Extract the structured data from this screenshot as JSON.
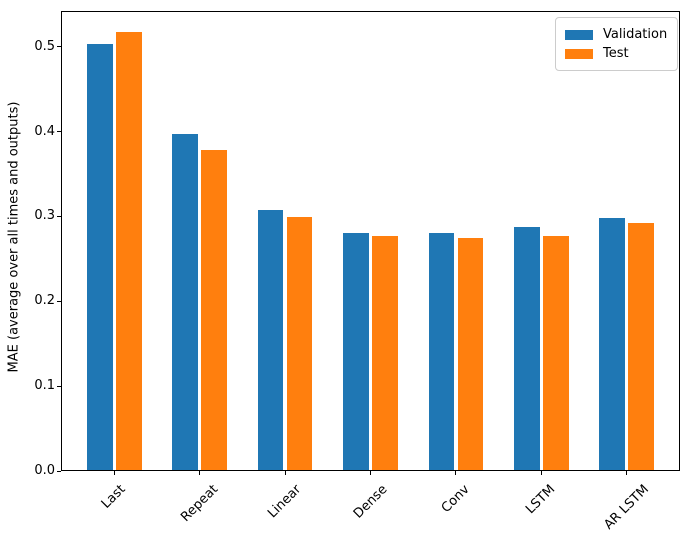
{
  "chart_data": {
    "type": "bar",
    "title": "",
    "xlabel": "",
    "ylabel": "MAE (average over all times and outputs)",
    "categories": [
      "Last",
      "Repeat",
      "Linear",
      "Dense",
      "Conv",
      "LSTM",
      "AR LSTM"
    ],
    "series": [
      {
        "name": "Validation",
        "color": "#1f77b4",
        "values": [
          0.503,
          0.397,
          0.307,
          0.281,
          0.28,
          0.287,
          0.298
        ]
      },
      {
        "name": "Test",
        "color": "#ff7f0e",
        "values": [
          0.517,
          0.378,
          0.299,
          0.277,
          0.275,
          0.277,
          0.292
        ]
      }
    ],
    "bar_width": 0.3,
    "bar_offsets": [
      -0.17,
      0.17
    ],
    "xlim": [
      -0.624,
      6.624
    ],
    "ylim": [
      0,
      0.542
    ],
    "yticks": [
      {
        "value": 0.0,
        "label": "0.0"
      },
      {
        "value": 0.1,
        "label": "0.1"
      },
      {
        "value": 0.2,
        "label": "0.2"
      },
      {
        "value": 0.3,
        "label": "0.3"
      },
      {
        "value": 0.4,
        "label": "0.4"
      },
      {
        "value": 0.5,
        "label": "0.5"
      }
    ],
    "xtick_rotation_deg": 45,
    "grid": false,
    "legend": {
      "position": "upper right",
      "entries": [
        "Validation",
        "Test"
      ]
    }
  }
}
